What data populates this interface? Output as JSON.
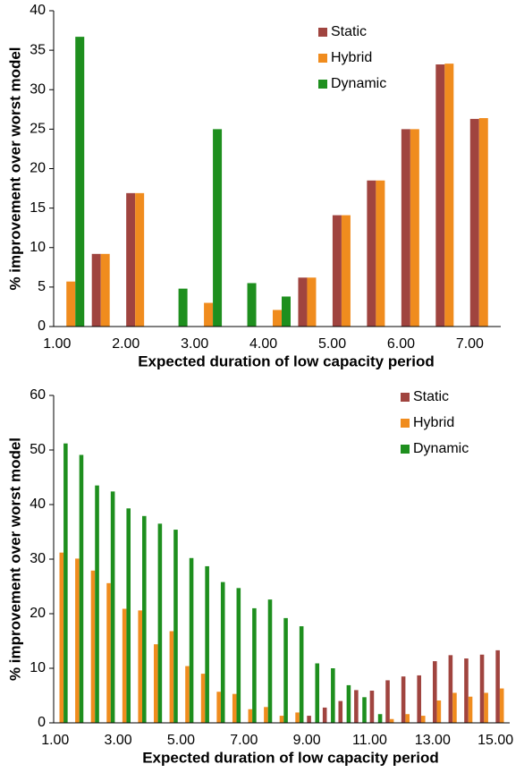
{
  "chart_data": [
    {
      "type": "bar",
      "x_label": "Expected duration of low capacity period",
      "y_label": "% improvement over worst model",
      "categories": [
        "1.00",
        null,
        "2.00",
        null,
        "3.00",
        null,
        "4.00",
        null,
        "5.00",
        null,
        "6.00",
        null,
        "7.00"
      ],
      "series": [
        {
          "name": "Static",
          "color": "#a0443f",
          "values": [
            0,
            9.2,
            16.9,
            0,
            0,
            0,
            0,
            6.2,
            14.1,
            18.5,
            25.0,
            33.2,
            26.3
          ]
        },
        {
          "name": "Hybrid",
          "color": "#f08c1e",
          "values": [
            5.7,
            9.2,
            16.9,
            0,
            3.0,
            0,
            2.1,
            6.2,
            14.1,
            18.5,
            25.0,
            33.3,
            26.4
          ]
        },
        {
          "name": "Dynamic",
          "color": "#1e8f1e",
          "values": [
            36.7,
            0,
            0,
            4.8,
            25.0,
            5.5,
            3.8,
            0,
            0,
            0,
            0,
            0,
            0
          ]
        }
      ],
      "ylim": [
        0,
        40
      ],
      "yticks": [
        0,
        5,
        10,
        15,
        20,
        25,
        30,
        35,
        40
      ],
      "legend": "upper-center"
    },
    {
      "type": "bar",
      "x_label": "Expected duration of low capacity period",
      "y_label": "% improvement over worst model",
      "categories": [
        "1.00",
        null,
        null,
        null,
        "3.00",
        null,
        null,
        null,
        "5.00",
        null,
        null,
        null,
        "7.00",
        null,
        null,
        null,
        "9.00",
        null,
        null,
        null,
        "11.00",
        null,
        null,
        null,
        "13.00",
        null,
        null,
        null,
        "15.00"
      ],
      "series": [
        {
          "name": "Static",
          "color": "#a0443f",
          "values": [
            0,
            0,
            0,
            0,
            0,
            0,
            0,
            0,
            0,
            0,
            0,
            0,
            0,
            0,
            0,
            0,
            1.3,
            2.8,
            4.0,
            6.0,
            5.9,
            7.8,
            8.5,
            8.7,
            11.3,
            12.4,
            11.8,
            12.5,
            13.3
          ]
        },
        {
          "name": "Hybrid",
          "color": "#f08c1e",
          "values": [
            31.2,
            30.1,
            27.9,
            25.6,
            20.9,
            20.6,
            14.4,
            16.8,
            10.4,
            9.0,
            5.7,
            5.3,
            2.5,
            2.9,
            1.3,
            1.9,
            0,
            0,
            0,
            0,
            0,
            0.7,
            1.6,
            1.3,
            4.1,
            5.5,
            4.8,
            5.5,
            6.3
          ]
        },
        {
          "name": "Dynamic",
          "color": "#1e8f1e",
          "values": [
            51.2,
            49.1,
            43.5,
            42.4,
            39.3,
            37.9,
            36.5,
            35.4,
            30.2,
            28.7,
            25.8,
            24.7,
            21.0,
            22.6,
            19.2,
            17.7,
            10.9,
            10.0,
            6.9,
            4.7,
            1.6,
            0,
            0,
            0,
            0,
            0,
            0,
            0,
            0
          ]
        }
      ],
      "ylim": [
        0,
        60
      ],
      "yticks": [
        0,
        10,
        20,
        30,
        40,
        50,
        60
      ],
      "legend": "upper-right"
    }
  ]
}
